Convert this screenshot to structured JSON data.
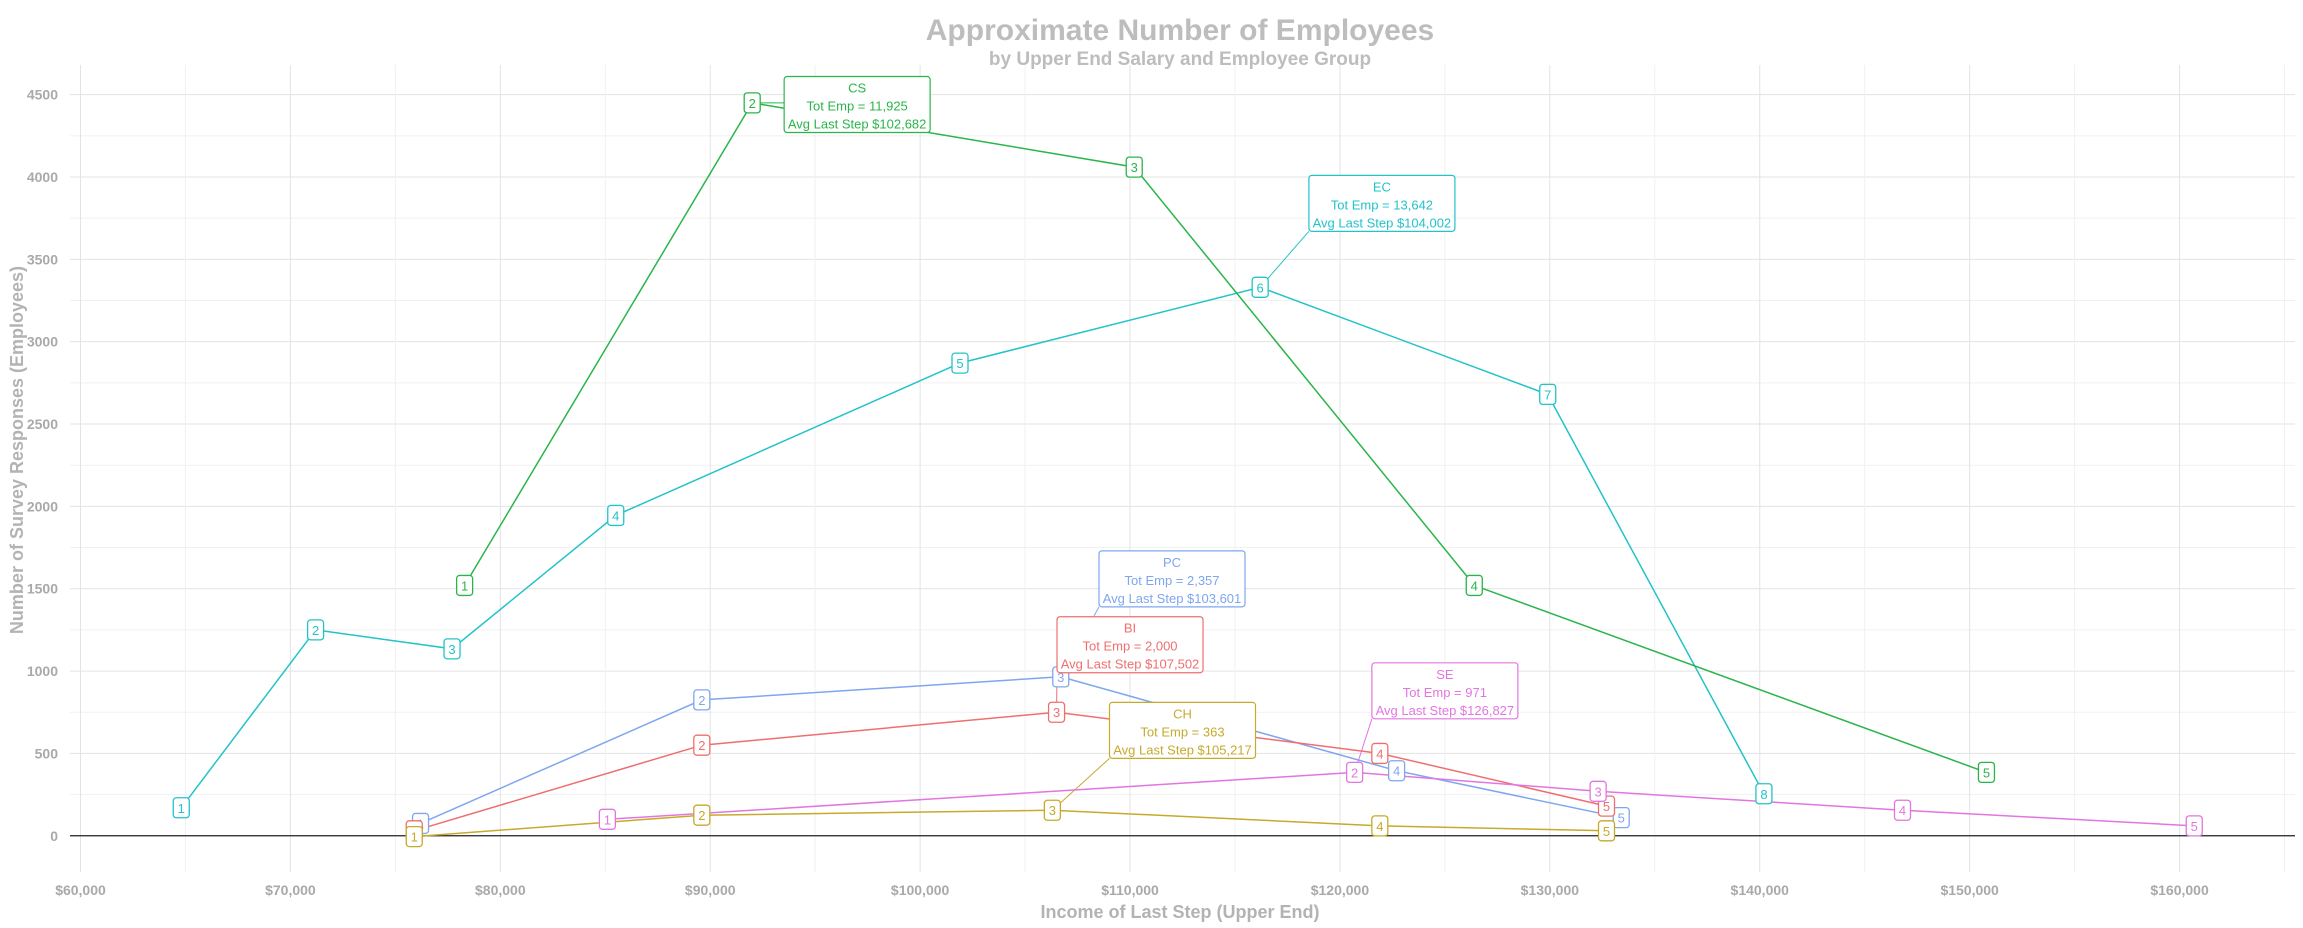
{
  "chart_data": {
    "type": "line",
    "title": "Approximate Number of Employees",
    "subtitle": "by Upper End Salary and Employee Group",
    "xlabel": "Income of Last Step (Upper End)",
    "ylabel": "Number of Survey Responses (Employees)",
    "xlim": [
      59500,
      165500
    ],
    "ylim": [
      -220,
      4680
    ],
    "x_ticks": [
      60000,
      70000,
      80000,
      90000,
      100000,
      110000,
      120000,
      130000,
      140000,
      150000,
      160000
    ],
    "x_tick_labels": [
      "$60,000",
      "$70,000",
      "$80,000",
      "$90,000",
      "$100,000",
      "$110,000",
      "$120,000",
      "$130,000",
      "$140,000",
      "$150,000",
      "$160,000"
    ],
    "y_ticks": [
      0,
      500,
      1000,
      1500,
      2000,
      2500,
      3000,
      3500,
      4000,
      4500
    ],
    "y_tick_labels": [
      "0",
      "500",
      "1000",
      "1500",
      "2000",
      "2500",
      "3000",
      "3500",
      "4000",
      "4500"
    ],
    "grid": true,
    "legend": "none",
    "series": [
      {
        "name": "EC",
        "color": "#22c3c9",
        "points": [
          {
            "label": "1",
            "x": 64800,
            "y": 170
          },
          {
            "label": "2",
            "x": 71200,
            "y": 1250
          },
          {
            "label": "3",
            "x": 77700,
            "y": 1135
          },
          {
            "label": "4",
            "x": 85500,
            "y": 1945
          },
          {
            "label": "5",
            "x": 101900,
            "y": 2870
          },
          {
            "label": "6",
            "x": 116200,
            "y": 3330
          },
          {
            "label": "7",
            "x": 129900,
            "y": 2680
          },
          {
            "label": "8",
            "x": 140200,
            "y": 255
          }
        ],
        "annotation": {
          "lines": [
            "EC",
            "Tot Emp = 13,642",
            "Avg Last Step $104,002"
          ],
          "x": 122000,
          "y": 3840,
          "anchor_point": 5
        }
      },
      {
        "name": "CS",
        "color": "#2ab54a",
        "points": [
          {
            "label": "1",
            "x": 78300,
            "y": 1520
          },
          {
            "label": "2",
            "x": 92000,
            "y": 4450
          },
          {
            "label": "3",
            "x": 110200,
            "y": 4060
          },
          {
            "label": "4",
            "x": 126400,
            "y": 1520
          },
          {
            "label": "5",
            "x": 150800,
            "y": 385
          }
        ],
        "annotation": {
          "lines": [
            "CS",
            "Tot Emp = 11,925",
            "Avg Last Step $102,682"
          ],
          "x": 97000,
          "y": 4440,
          "anchor_point": 1
        }
      },
      {
        "name": "PC",
        "color": "#7fa6ef",
        "points": [
          {
            "label": "1",
            "x": 76200,
            "y": 75
          },
          {
            "label": "2",
            "x": 89600,
            "y": 825
          },
          {
            "label": "3",
            "x": 106700,
            "y": 965
          },
          {
            "label": "4",
            "x": 122700,
            "y": 395
          },
          {
            "label": "5",
            "x": 133400,
            "y": 110
          }
        ],
        "annotation": {
          "lines": [
            "PC",
            "Tot Emp =  2,357",
            "Avg Last Step $103,601"
          ],
          "x": 112000,
          "y": 1560,
          "anchor_point": 2
        }
      },
      {
        "name": "BI",
        "color": "#ef6f6f",
        "points": [
          {
            "label": "1",
            "x": 75900,
            "y": 30
          },
          {
            "label": "2",
            "x": 89600,
            "y": 550
          },
          {
            "label": "3",
            "x": 106500,
            "y": 750
          },
          {
            "label": "4",
            "x": 121900,
            "y": 500
          },
          {
            "label": "5",
            "x": 132700,
            "y": 180
          }
        ],
        "annotation": {
          "lines": [
            "BI",
            "Tot Emp =  2,000",
            "Avg Last Step $107,502"
          ],
          "x": 110000,
          "y": 1160,
          "anchor_point": 2
        }
      },
      {
        "name": "SE",
        "color": "#e276e0",
        "points": [
          {
            "label": "1",
            "x": 85100,
            "y": 100
          },
          {
            "label": "2",
            "x": 120700,
            "y": 385
          },
          {
            "label": "3",
            "x": 132300,
            "y": 270
          },
          {
            "label": "4",
            "x": 146800,
            "y": 155
          },
          {
            "label": "5",
            "x": 160700,
            "y": 60
          }
        ],
        "annotation": {
          "lines": [
            "SE",
            "Tot Emp =     971",
            "Avg Last Step $126,827"
          ],
          "x": 125000,
          "y": 880,
          "anchor_point": 1
        }
      },
      {
        "name": "CH",
        "color": "#c6aa2c",
        "points": [
          {
            "label": "1",
            "x": 75900,
            "y": -5
          },
          {
            "label": "2",
            "x": 89600,
            "y": 125
          },
          {
            "label": "3",
            "x": 106300,
            "y": 155
          },
          {
            "label": "4",
            "x": 121900,
            "y": 60
          },
          {
            "label": "5",
            "x": 132700,
            "y": 30
          }
        ],
        "annotation": {
          "lines": [
            "CH",
            "Tot Emp =     363",
            "Avg Last Step $105,217"
          ],
          "x": 112500,
          "y": 640,
          "anchor_point": 2
        }
      }
    ]
  }
}
